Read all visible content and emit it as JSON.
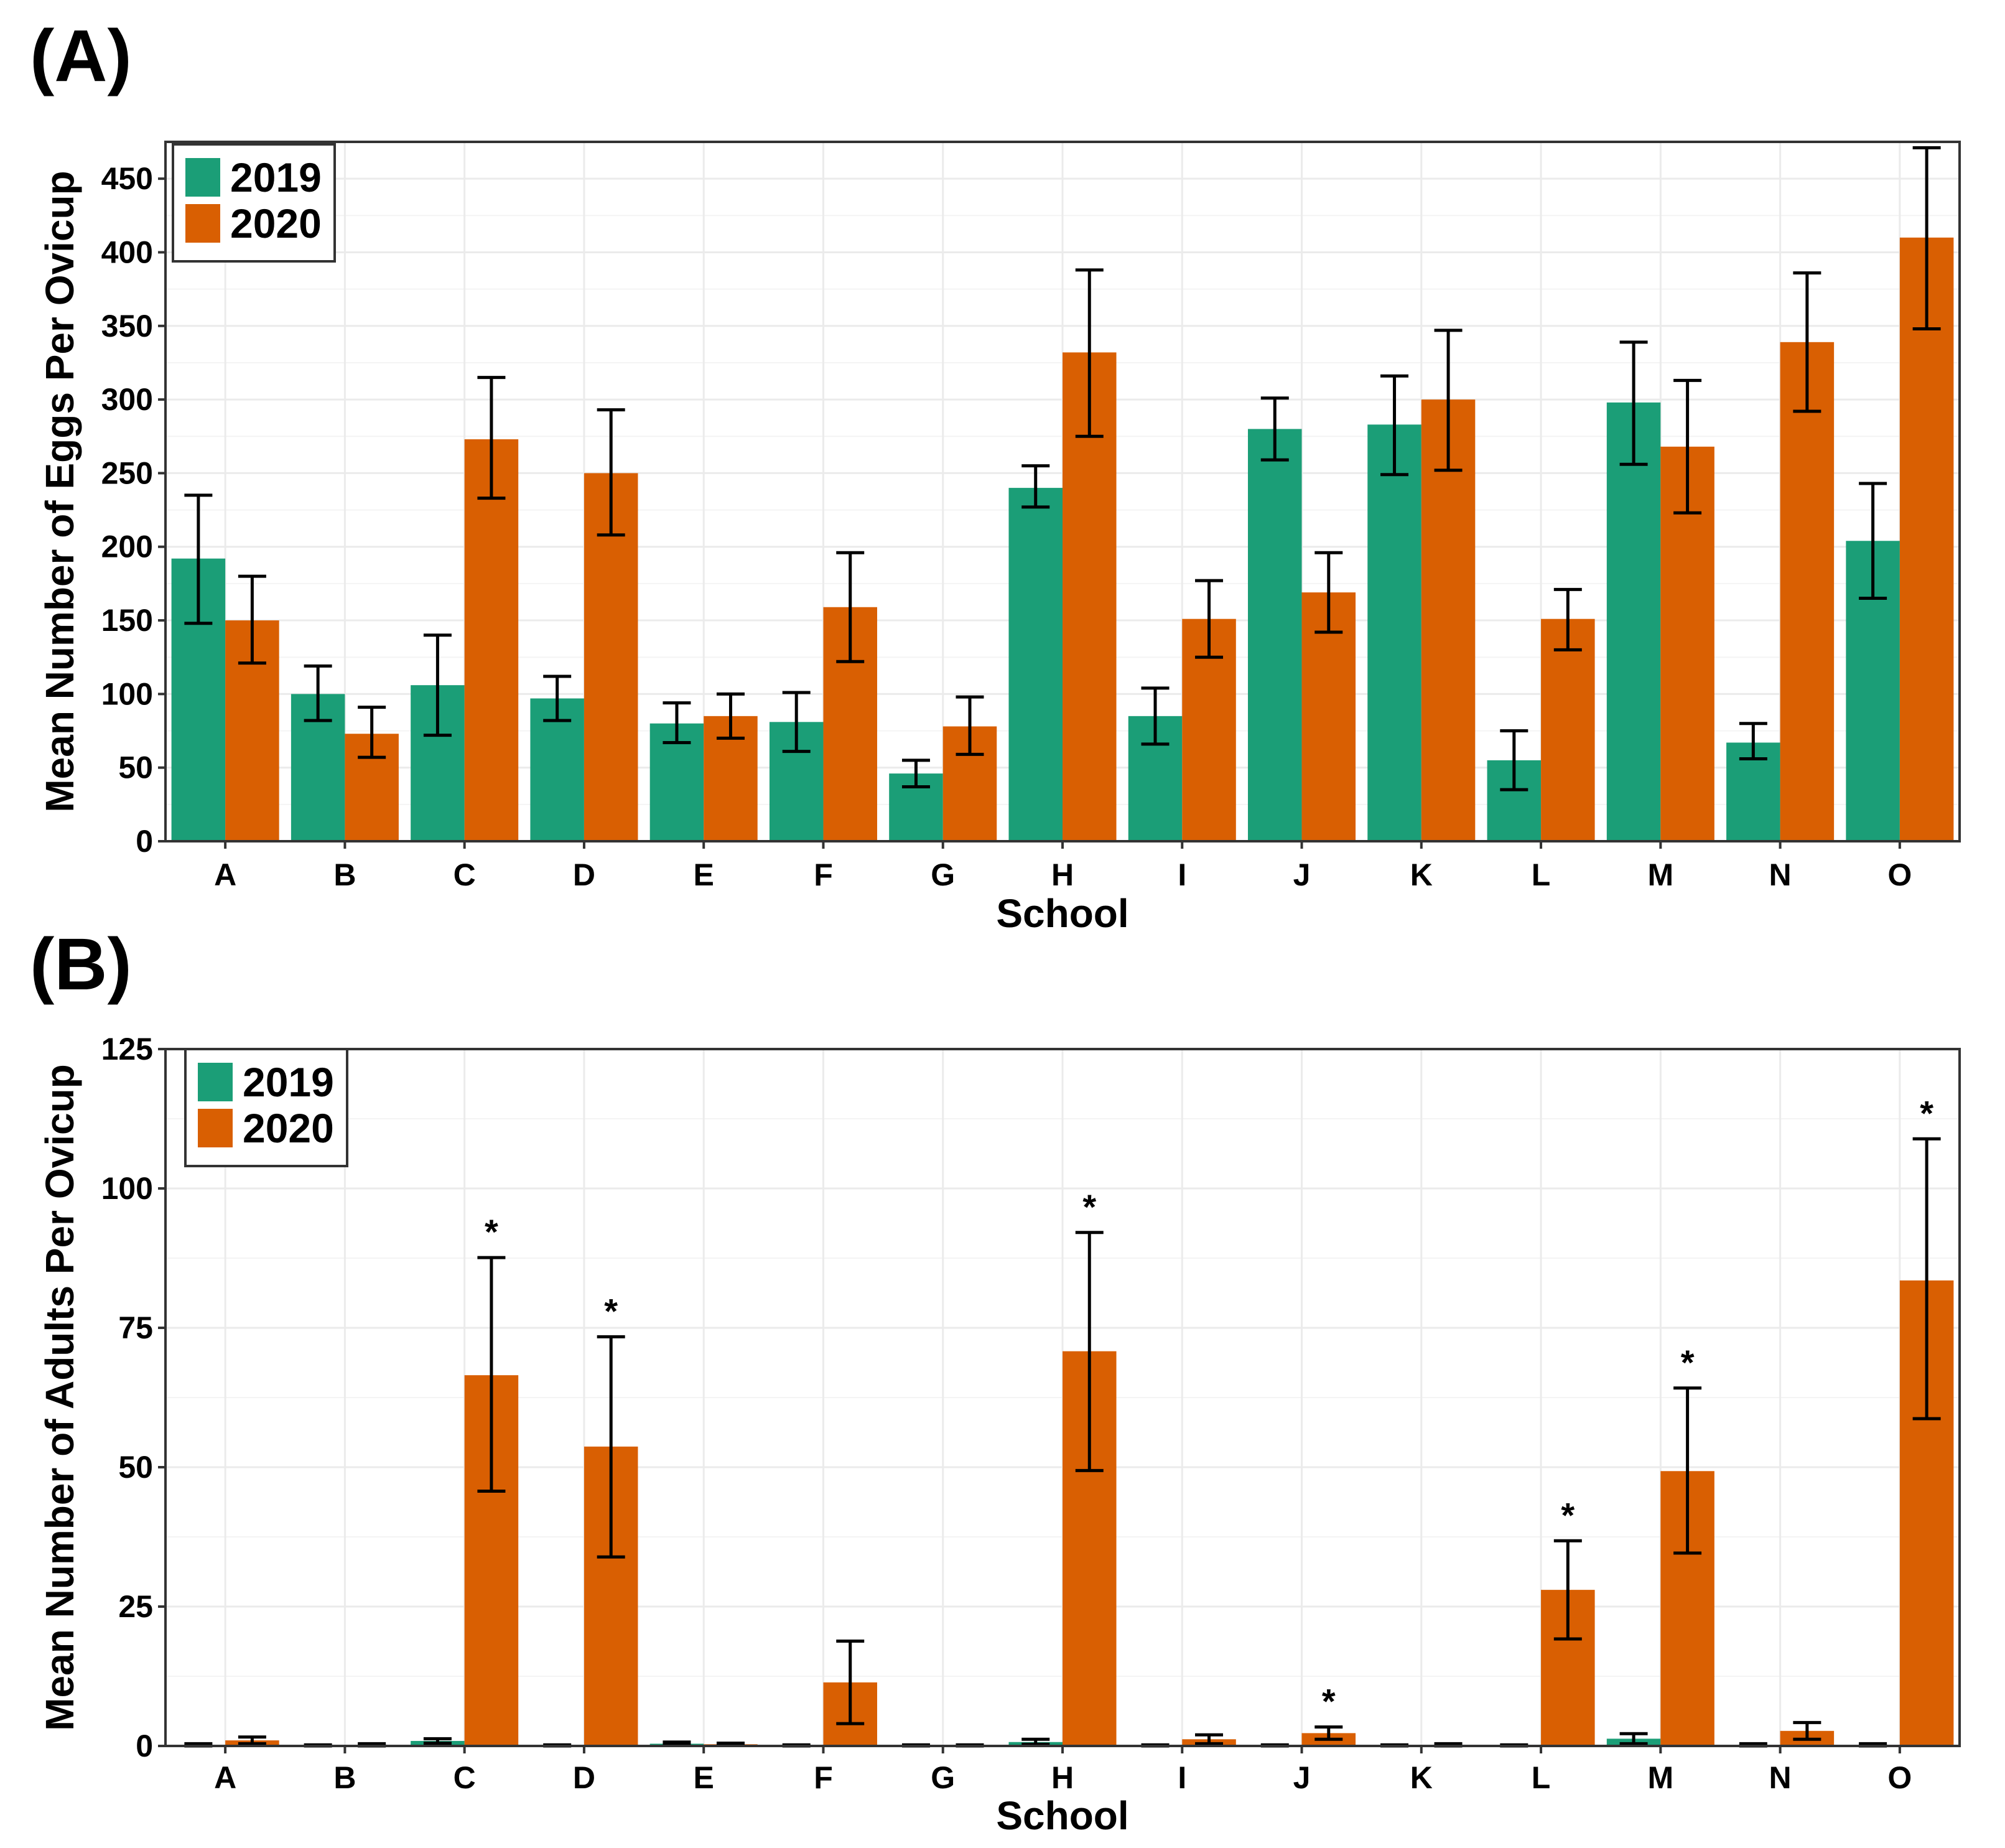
{
  "chart_data": [
    {
      "panel": "(A)",
      "type": "bar",
      "xlabel": "School",
      "ylabel": "Mean Number of Eggs Per Ovicup",
      "ylim": [
        0,
        475
      ],
      "yticks": [
        0,
        50,
        100,
        150,
        200,
        250,
        300,
        350,
        400,
        450
      ],
      "grid": true,
      "legend": "top-left",
      "categories": [
        "A",
        "B",
        "C",
        "D",
        "E",
        "F",
        "G",
        "H",
        "I",
        "J",
        "K",
        "L",
        "M",
        "N",
        "O"
      ],
      "series": [
        {
          "name": "2019",
          "color": "#1b9e77",
          "values": [
            192,
            100,
            106,
            97,
            80,
            81,
            46,
            240,
            85,
            280,
            283,
            55,
            298,
            67,
            204
          ],
          "err_low": [
            148,
            82,
            72,
            82,
            67,
            61,
            37,
            227,
            66,
            259,
            249,
            35,
            256,
            56,
            165
          ],
          "err_high": [
            235,
            119,
            140,
            112,
            94,
            101,
            55,
            255,
            104,
            301,
            316,
            75,
            339,
            80,
            243
          ],
          "markers": []
        },
        {
          "name": "2020",
          "color": "#d95f02",
          "values": [
            150,
            73,
            273,
            250,
            85,
            159,
            78,
            332,
            151,
            169,
            300,
            151,
            268,
            339,
            410
          ],
          "err_low": [
            121,
            57,
            233,
            208,
            70,
            122,
            59,
            275,
            125,
            142,
            252,
            130,
            223,
            292,
            348
          ],
          "err_high": [
            180,
            91,
            315,
            293,
            100,
            196,
            98,
            388,
            177,
            196,
            347,
            171,
            313,
            386,
            471
          ],
          "markers": []
        }
      ]
    },
    {
      "panel": "(B)",
      "type": "bar",
      "xlabel": "School",
      "ylabel": "Mean Number of Adults Per Ovicup",
      "ylim": [
        0,
        125
      ],
      "yticks": [
        0,
        25,
        50,
        75,
        100,
        125
      ],
      "grid": true,
      "legend": "top-left",
      "categories": [
        "A",
        "B",
        "C",
        "D",
        "E",
        "F",
        "G",
        "H",
        "I",
        "J",
        "K",
        "L",
        "M",
        "N",
        "O"
      ],
      "series": [
        {
          "name": "2019",
          "color": "#1b9e77",
          "values": [
            0.2,
            0.1,
            0.9,
            0.1,
            0.4,
            0.1,
            0.1,
            0.7,
            0.1,
            0.1,
            0.1,
            0.1,
            1.3,
            0.2,
            0.2
          ],
          "err_low": [
            0,
            0,
            0.5,
            0,
            0.2,
            0,
            0,
            0.3,
            0,
            0,
            0,
            0,
            0.4,
            0,
            0
          ],
          "err_high": [
            0.4,
            0.2,
            1.3,
            0.2,
            0.7,
            0.2,
            0.2,
            1.2,
            0.2,
            0.2,
            0.2,
            0.2,
            2.2,
            0.4,
            0.4
          ],
          "markers": []
        },
        {
          "name": "2020",
          "color": "#d95f02",
          "values": [
            1,
            0.2,
            66.5,
            53.7,
            0.3,
            11.4,
            0.1,
            70.8,
            1.2,
            2.3,
            0.2,
            28,
            49.3,
            2.7,
            83.5
          ],
          "err_low": [
            0.4,
            0,
            45.7,
            33.9,
            0.1,
            4,
            0,
            49.4,
            0.4,
            1.2,
            0,
            19.2,
            34.6,
            1.2,
            58.7
          ],
          "err_high": [
            1.6,
            0.4,
            87.6,
            73.4,
            0.5,
            18.8,
            0.2,
            92.1,
            2,
            3.4,
            0.4,
            36.8,
            64.2,
            4.2,
            108.9
          ],
          "markers": [
            "",
            "",
            "*",
            "*",
            "",
            "",
            "",
            "*",
            "",
            "*",
            "",
            "*",
            "*",
            "",
            "*"
          ]
        }
      ]
    }
  ]
}
